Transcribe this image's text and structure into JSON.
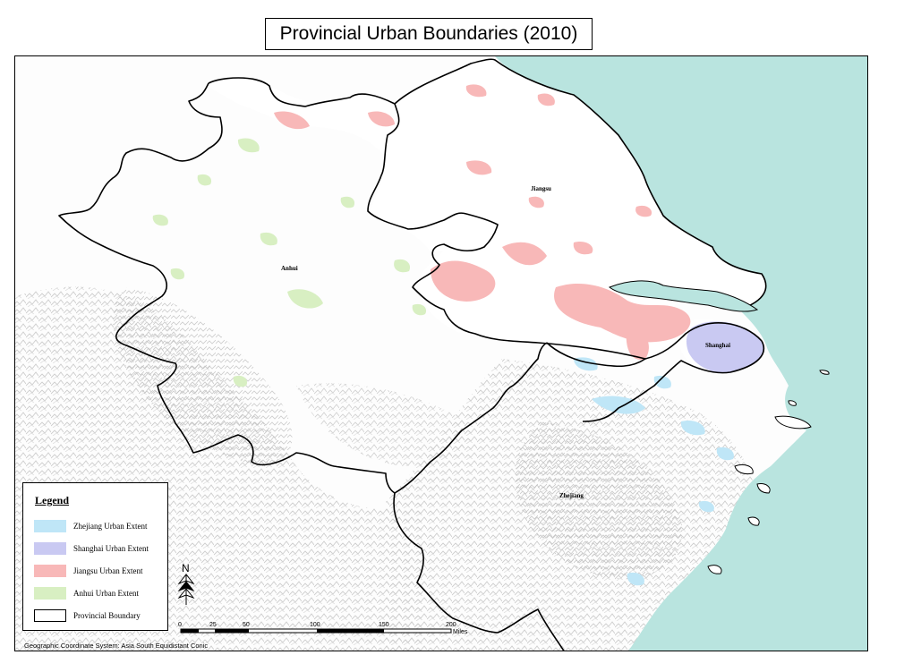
{
  "title": "Provincial Urban Boundaries (2010)",
  "provinces": [
    {
      "name": "Jiangsu"
    },
    {
      "name": "Anhui"
    },
    {
      "name": "Shanghai"
    },
    {
      "name": "Zhejiang"
    }
  ],
  "colors": {
    "sea": "#b9e4df",
    "zhejiang": "#bfe6f7",
    "shanghai": "#c9c9f2",
    "jiangsu": "#f8b8b8",
    "anhui": "#d8efc2",
    "boundary": "#000000",
    "relief": "#cfcfcf"
  },
  "legend": {
    "title": "Legend",
    "items": [
      {
        "label": "Zhejiang Urban Extent",
        "color": "#bfe6f7"
      },
      {
        "label": "Shanghai Urban Extent",
        "color": "#c9c9f2"
      },
      {
        "label": "Jiangsu Urban Extent",
        "color": "#f8b8b8"
      },
      {
        "label": "Anhui Urban Extent",
        "color": "#d8efc2"
      },
      {
        "label": "Provincial Boundary",
        "color": "#ffffff"
      }
    ]
  },
  "north_arrow": {
    "label": "N"
  },
  "scale_bar": {
    "ticks": [
      "0",
      "25",
      "50",
      "100",
      "150",
      "200"
    ],
    "unit": "Miles"
  },
  "crs_note": "Geographic Coordinate System: Asia South Equidistant Conic"
}
